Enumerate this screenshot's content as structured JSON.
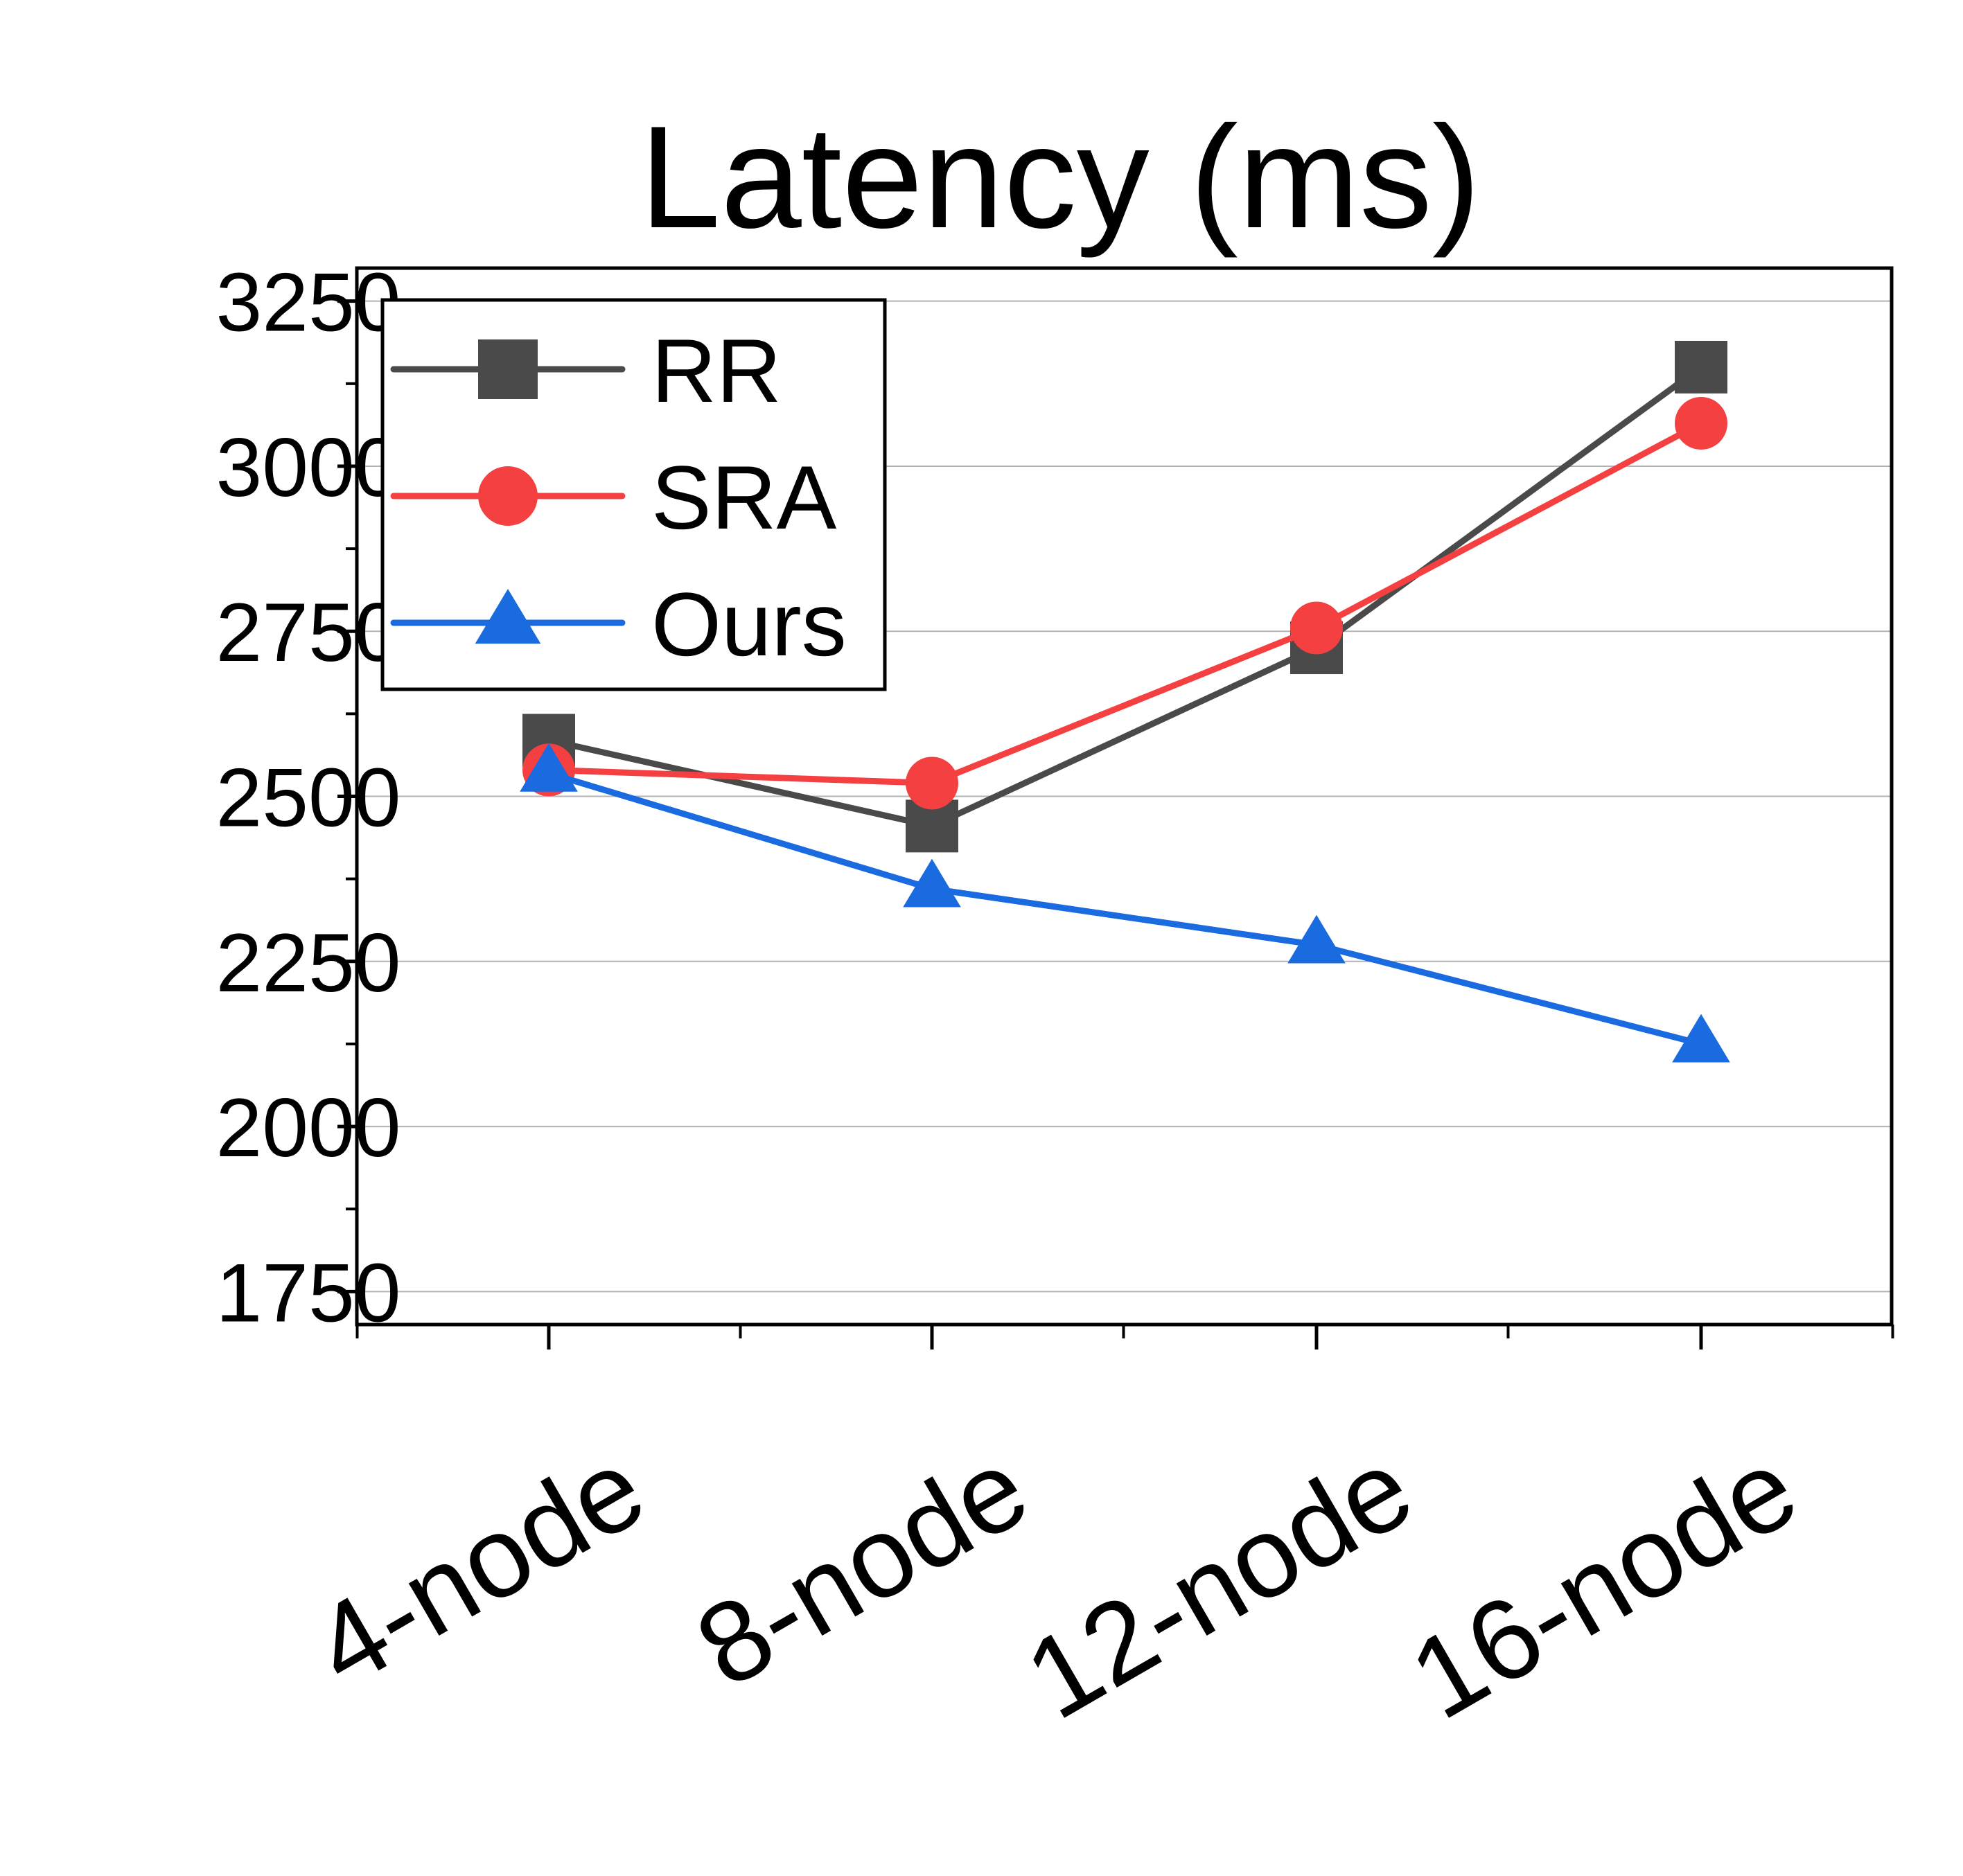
{
  "chart_data": {
    "type": "line",
    "title": "Latency (ms)",
    "xlabel": "",
    "ylabel": "",
    "categories": [
      "4-node",
      "8-node",
      "12-node",
      "16-node"
    ],
    "ylim": [
      1700,
      3300
    ],
    "yticks": [
      1750,
      2000,
      2250,
      2500,
      2750,
      3000,
      3250
    ],
    "grid": true,
    "legend_position": "top-left",
    "series": [
      {
        "name": "RR",
        "values": [
          2585,
          2455,
          2725,
          3150
        ],
        "color": "#4a4a4a",
        "marker": "square"
      },
      {
        "name": "SRA",
        "values": [
          2540,
          2520,
          2755,
          3065
        ],
        "color": "#f44040",
        "marker": "circle"
      },
      {
        "name": "Ours",
        "values": [
          2535,
          2360,
          2275,
          2125
        ],
        "color": "#1a6ae0",
        "marker": "triangle"
      }
    ]
  }
}
